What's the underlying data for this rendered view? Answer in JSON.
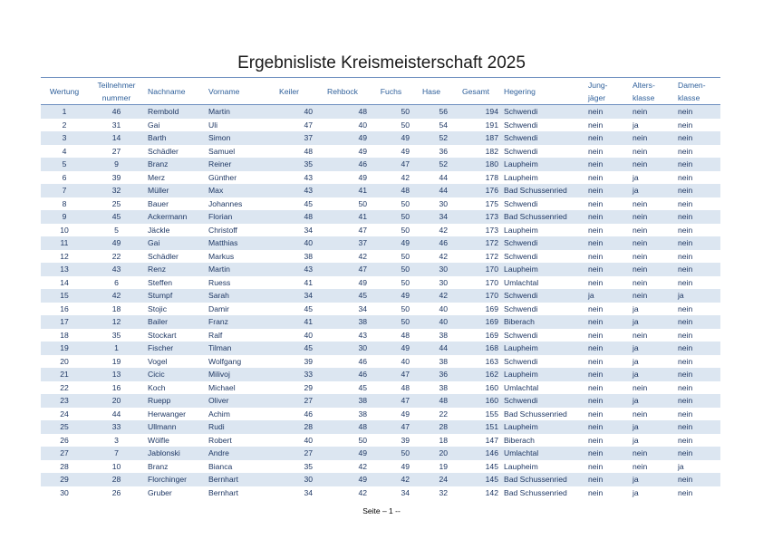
{
  "title": "Ergebnisliste Kreismeisterschaft 2025",
  "table": {
    "header": [
      "Wertung",
      "Teilnehmer\nnummer",
      "Nachname",
      "Vorname",
      "Keiler",
      "Rehbock",
      "Fuchs",
      "Hase",
      "Gesamt",
      "Hegering",
      "Jung-\njäger",
      "Alters-\nklasse",
      "Damen-\nklasse"
    ],
    "rows": [
      [
        1,
        46,
        "Rembold",
        "Martin",
        40,
        48,
        50,
        56,
        194,
        "Schwendi",
        "nein",
        "nein",
        "nein"
      ],
      [
        2,
        31,
        "Gai",
        "Uli",
        47,
        40,
        50,
        54,
        191,
        "Schwendi",
        "nein",
        "ja",
        "nein"
      ],
      [
        3,
        14,
        "Barth",
        "Simon",
        37,
        49,
        49,
        52,
        187,
        "Schwendi",
        "nein",
        "nein",
        "nein"
      ],
      [
        4,
        27,
        "Schädler",
        "Samuel",
        48,
        49,
        49,
        36,
        182,
        "Schwendi",
        "nein",
        "nein",
        "nein"
      ],
      [
        5,
        9,
        "Branz",
        "Reiner",
        35,
        46,
        47,
        52,
        180,
        "Laupheim",
        "nein",
        "nein",
        "nein"
      ],
      [
        6,
        39,
        "Merz",
        "Günther",
        43,
        49,
        42,
        44,
        178,
        "Laupheim",
        "nein",
        "ja",
        "nein"
      ],
      [
        7,
        32,
        "Müller",
        "Max",
        43,
        41,
        48,
        44,
        176,
        "Bad Schussenried",
        "nein",
        "ja",
        "nein"
      ],
      [
        8,
        25,
        "Bauer",
        "Johannes",
        45,
        50,
        50,
        30,
        175,
        "Schwendi",
        "nein",
        "nein",
        "nein"
      ],
      [
        9,
        45,
        "Ackermann",
        "Florian",
        48,
        41,
        50,
        34,
        173,
        "Bad Schussenried",
        "nein",
        "nein",
        "nein"
      ],
      [
        10,
        5,
        "Jäckle",
        "Christoff",
        34,
        47,
        50,
        42,
        173,
        "Laupheim",
        "nein",
        "nein",
        "nein"
      ],
      [
        11,
        49,
        "Gai",
        "Matthias",
        40,
        37,
        49,
        46,
        172,
        "Schwendi",
        "nein",
        "nein",
        "nein"
      ],
      [
        12,
        22,
        "Schädler",
        "Markus",
        38,
        42,
        50,
        42,
        172,
        "Schwendi",
        "nein",
        "nein",
        "nein"
      ],
      [
        13,
        43,
        "Renz",
        "Martin",
        43,
        47,
        50,
        30,
        170,
        "Laupheim",
        "nein",
        "nein",
        "nein"
      ],
      [
        14,
        6,
        "Steffen",
        "Ruess",
        41,
        49,
        50,
        30,
        170,
        "Umlachtal",
        "nein",
        "nein",
        "nein"
      ],
      [
        15,
        42,
        "Stumpf",
        "Sarah",
        34,
        45,
        49,
        42,
        170,
        "Schwendi",
        "ja",
        "nein",
        "ja"
      ],
      [
        16,
        18,
        "Stojic",
        "Damir",
        45,
        34,
        50,
        40,
        169,
        "Schwendi",
        "nein",
        "ja",
        "nein"
      ],
      [
        17,
        12,
        "Bailer",
        "Franz",
        41,
        38,
        50,
        40,
        169,
        "Biberach",
        "nein",
        "ja",
        "nein"
      ],
      [
        18,
        35,
        "Stockart",
        "Ralf",
        40,
        43,
        48,
        38,
        169,
        "Schwendi",
        "nein",
        "nein",
        "nein"
      ],
      [
        19,
        1,
        "Fischer",
        "Tilman",
        45,
        30,
        49,
        44,
        168,
        "Laupheim",
        "nein",
        "ja",
        "nein"
      ],
      [
        20,
        19,
        "Vogel",
        "Wolfgang",
        39,
        46,
        40,
        38,
        163,
        "Schwendi",
        "nein",
        "ja",
        "nein"
      ],
      [
        21,
        13,
        "Cicic",
        "Milivoj",
        33,
        46,
        47,
        36,
        162,
        "Laupheim",
        "nein",
        "ja",
        "nein"
      ],
      [
        22,
        16,
        "Koch",
        "Michael",
        29,
        45,
        48,
        38,
        160,
        "Umlachtal",
        "nein",
        "nein",
        "nein"
      ],
      [
        23,
        20,
        "Ruepp",
        "Oliver",
        27,
        38,
        47,
        48,
        160,
        "Schwendi",
        "nein",
        "ja",
        "nein"
      ],
      [
        24,
        44,
        "Herwanger",
        "Achim",
        46,
        38,
        49,
        22,
        155,
        "Bad Schussenried",
        "nein",
        "nein",
        "nein"
      ],
      [
        25,
        33,
        "Ullmann",
        "Rudi",
        28,
        48,
        47,
        28,
        151,
        "Laupheim",
        "nein",
        "ja",
        "nein"
      ],
      [
        26,
        3,
        "Wölfle",
        "Robert",
        40,
        50,
        39,
        18,
        147,
        "Biberach",
        "nein",
        "ja",
        "nein"
      ],
      [
        27,
        7,
        "Jablonski",
        "Andre",
        27,
        49,
        50,
        20,
        146,
        "Umlachtal",
        "nein",
        "nein",
        "nein"
      ],
      [
        28,
        10,
        "Branz",
        "Bianca",
        35,
        42,
        49,
        19,
        145,
        "Laupheim",
        "nein",
        "nein",
        "ja"
      ],
      [
        29,
        28,
        "Florchinger",
        "Bernhart",
        30,
        49,
        42,
        24,
        145,
        "Bad Schussenried",
        "nein",
        "ja",
        "nein"
      ],
      [
        30,
        26,
        "Gruber",
        "Bernhart",
        34,
        42,
        34,
        32,
        142,
        "Bad Schussenried",
        "nein",
        "ja",
        "nein"
      ]
    ]
  },
  "footer": "Seite – 1 --"
}
